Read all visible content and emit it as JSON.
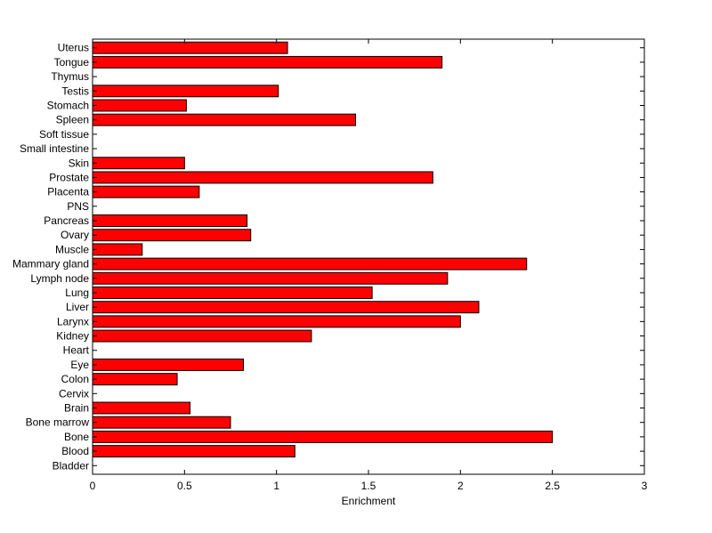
{
  "chart_data": {
    "type": "bar",
    "orientation": "horizontal",
    "categories": [
      "Bladder",
      "Blood",
      "Bone",
      "Bone marrow",
      "Brain",
      "Cervix",
      "Colon",
      "Eye",
      "Heart",
      "Kidney",
      "Larynx",
      "Liver",
      "Lung",
      "Lymph node",
      "Mammary gland",
      "Muscle",
      "Ovary",
      "Pancreas",
      "PNS",
      "Placenta",
      "Prostate",
      "Skin",
      "Small intestine",
      "Soft tissue",
      "Spleen",
      "Stomach",
      "Testis",
      "Thymus",
      "Tongue",
      "Uterus"
    ],
    "values": [
      0,
      1.1,
      2.5,
      0.75,
      0.53,
      0,
      0.46,
      0.82,
      0,
      1.19,
      2.0,
      2.1,
      1.52,
      1.93,
      2.36,
      0.27,
      0.86,
      0.84,
      0,
      0.58,
      1.85,
      0.5,
      0,
      0,
      1.43,
      0.51,
      1.01,
      0,
      1.9,
      1.06
    ],
    "title": "",
    "xlabel": "Enrichment",
    "ylabel": "",
    "xlim": [
      0,
      3
    ],
    "xticks": [
      0,
      0.5,
      1,
      1.5,
      2,
      2.5,
      3
    ],
    "xtick_labels": [
      "0",
      "0.5",
      "1",
      "1.5",
      "2",
      "2.5",
      "3"
    ],
    "grid": false,
    "bar_color": "#ff0000",
    "edge_color": "#000000"
  }
}
